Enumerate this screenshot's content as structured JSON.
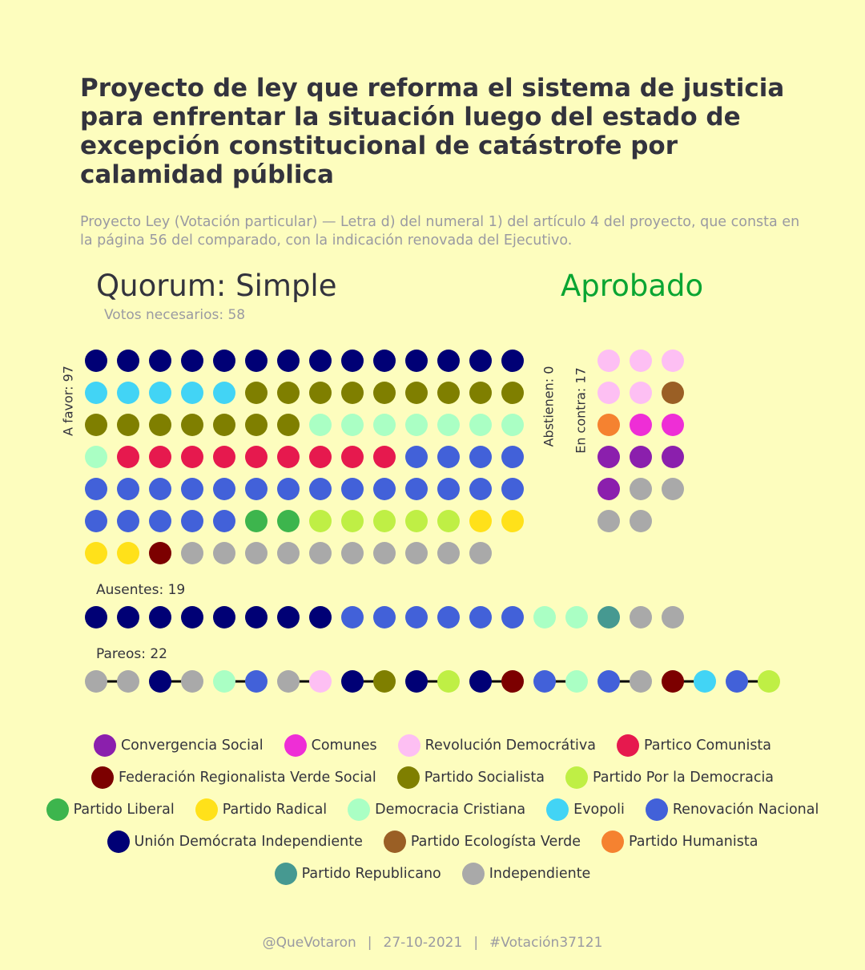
{
  "title": "Proyecto de ley que reforma el sistema de justicia para enfrentar la situación luego del estado de excepción constitucional de catástrofe por calamidad pública",
  "subtitle": "Proyecto Ley (Votación particular) — Letra d) del numeral 1) del artículo 4 del proyecto, que consta en la página 56 del comparado, con la indicación renovada del Ejecutivo.",
  "quorum": "Quorum: Simple",
  "result": "Aprobado",
  "result_color": "#0aa532",
  "votes_needed": "Votos necesarios: 58",
  "labels": {
    "favor": "A favor: 97",
    "abstain": "Abstienen: 0",
    "contra": "En contra: 17",
    "absent": "Ausentes: 19",
    "pairs": "Pareos: 22"
  },
  "parties": [
    {
      "id": "CS",
      "name": "Convergencia Social",
      "color": "#8b1fad"
    },
    {
      "id": "COM",
      "name": "Comunes",
      "color": "#ee2ed6"
    },
    {
      "id": "RD",
      "name": "Revolución Democrátiva",
      "color": "#fdbff3"
    },
    {
      "id": "PC",
      "name": "Partico Comunista",
      "color": "#e6194e"
    },
    {
      "id": "FRVS",
      "name": "Federación Regionalista Verde Social",
      "color": "#7c0000"
    },
    {
      "id": "PS",
      "name": "Partido Socialista",
      "color": "#7f7f00"
    },
    {
      "id": "PPD",
      "name": "Partido Por la Democracia",
      "color": "#bfef45"
    },
    {
      "id": "PL",
      "name": "Partido Liberal",
      "color": "#3db54d"
    },
    {
      "id": "PR",
      "name": "Partido Radical",
      "color": "#ffe11a"
    },
    {
      "id": "DC",
      "name": "Democracia Cristiana",
      "color": "#aaffc4"
    },
    {
      "id": "EVO",
      "name": "Evopoli",
      "color": "#42d4f5"
    },
    {
      "id": "RN",
      "name": "Renovación Nacional",
      "color": "#4261d9"
    },
    {
      "id": "UDI",
      "name": "Unión Demócrata Independiente",
      "color": "#000075"
    },
    {
      "id": "PEV",
      "name": "Partido Ecologísta Verde",
      "color": "#9a5f25"
    },
    {
      "id": "PH",
      "name": "Partido Humanista",
      "color": "#f58230"
    },
    {
      "id": "REP",
      "name": "Partido Republicano",
      "color": "#469991"
    },
    {
      "id": "IND",
      "name": "Independiente",
      "color": "#a9a9a9"
    }
  ],
  "legend_rows": [
    [
      "CS",
      "COM",
      "RD",
      "PC"
    ],
    [
      "FRVS",
      "PS",
      "PPD"
    ],
    [
      "PL",
      "PR",
      "DC",
      "EVO",
      "RN"
    ],
    [
      "UDI",
      "PEV",
      "PH"
    ],
    [
      "REP",
      "IND"
    ]
  ],
  "chart_data": {
    "type": "seat-dot-plot",
    "votes": {
      "favor": 97,
      "abstain": 0,
      "contra": 17,
      "absent": 19,
      "pairs": 22
    },
    "favor_seats": [
      {
        "party": "UDI",
        "count": 14
      },
      {
        "party": "EVO",
        "count": 5
      },
      {
        "party": "PS",
        "count": 16
      },
      {
        "party": "DC",
        "count": 8
      },
      {
        "party": "PC",
        "count": 9
      },
      {
        "party": "RN",
        "count": 23
      },
      {
        "party": "PL",
        "count": 2
      },
      {
        "party": "PPD",
        "count": 5
      },
      {
        "party": "PR",
        "count": 4
      },
      {
        "party": "FRVS",
        "count": 1
      },
      {
        "party": "IND",
        "count": 10
      }
    ],
    "contra_seats": [
      {
        "party": "RD",
        "count": 5
      },
      {
        "party": "PEV",
        "count": 1
      },
      {
        "party": "PH",
        "count": 1
      },
      {
        "party": "COM",
        "count": 2
      },
      {
        "party": "CS",
        "count": 4
      },
      {
        "party": "IND",
        "count": 4
      }
    ],
    "abstain_seats": [],
    "absent_seats": [
      {
        "party": "UDI",
        "count": 8
      },
      {
        "party": "RN",
        "count": 6
      },
      {
        "party": "DC",
        "count": 2
      },
      {
        "party": "REP",
        "count": 1
      },
      {
        "party": "IND",
        "count": 2
      }
    ],
    "pairs": [
      [
        "IND",
        "IND"
      ],
      [
        "UDI",
        "IND"
      ],
      [
        "DC",
        "RN"
      ],
      [
        "IND",
        "RD"
      ],
      [
        "UDI",
        "PS"
      ],
      [
        "UDI",
        "PPD"
      ],
      [
        "UDI",
        "FRVS"
      ],
      [
        "RN",
        "DC"
      ],
      [
        "RN",
        "IND"
      ],
      [
        "FRVS",
        "EVO"
      ],
      [
        "RN",
        "PPD"
      ]
    ]
  },
  "footer": {
    "handle": "@QueVotaron",
    "date": "27-10-2021",
    "tag": "#Votación37121",
    "separator": "|"
  }
}
